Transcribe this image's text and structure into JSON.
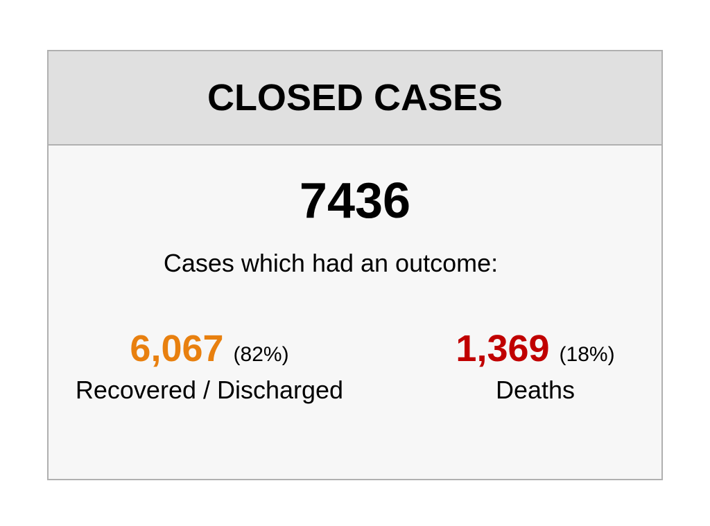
{
  "header": {
    "title": "CLOSED CASES"
  },
  "total": {
    "value": "7436",
    "caption": "Cases which had an outcome:"
  },
  "outcomes": [
    {
      "value": "6,067",
      "percent": "(82%)",
      "label": "Recovered / Discharged"
    },
    {
      "value": "1,369",
      "percent": "(18%)",
      "label": "Deaths"
    }
  ]
}
